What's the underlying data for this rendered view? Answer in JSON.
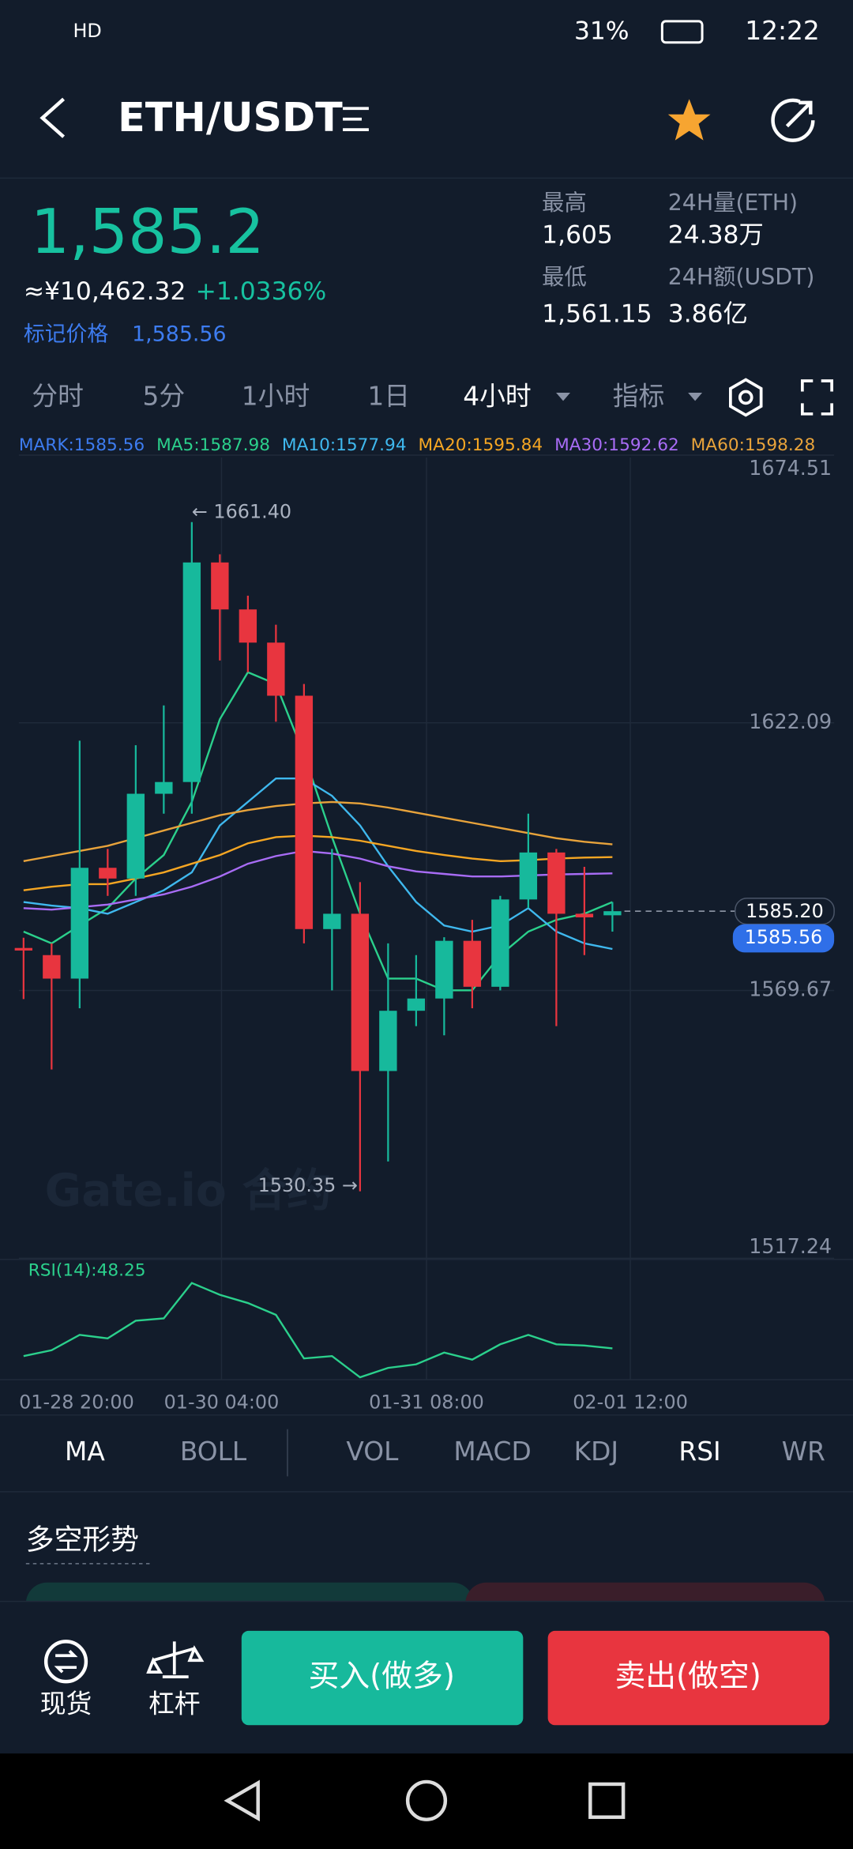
{
  "status_bar": {
    "battery": "31%",
    "time": "12:22"
  },
  "header": {
    "title": "ETH/USDT"
  },
  "ticker": {
    "price": "1,585.2",
    "cny": "≈¥10,462.32",
    "change": "+1.0336%",
    "mark_label": "标记价格",
    "mark_value": "1,585.56",
    "stats": [
      {
        "label": "最高",
        "value": "1,605"
      },
      {
        "label": "24H量(ETH)",
        "value": "24.38万"
      },
      {
        "label": "最低",
        "value": "1,561.15"
      },
      {
        "label": "24H额(USDT)",
        "value": "3.86亿"
      }
    ]
  },
  "intervals": [
    "分时",
    "5分",
    "1小时",
    "1日",
    "4小时",
    "指标"
  ],
  "chart_data": {
    "type": "candlestick",
    "legend": [
      {
        "text": "MARK:1585.56",
        "color": "#3d7cf0"
      },
      {
        "text": "MA5:1587.98",
        "color": "#2bd08c"
      },
      {
        "text": "MA10:1577.94",
        "color": "#3fb8ee"
      },
      {
        "text": "MA20:1595.84",
        "color": "#f5a623"
      },
      {
        "text": "MA30:1592.62",
        "color": "#a86cf5"
      },
      {
        "text": "MA60:1598.28",
        "color": "#e8a33b"
      }
    ],
    "ylim": [
      1517.24,
      1674.51
    ],
    "yticks": [
      1674.51,
      1622.09,
      1569.67,
      1517.24
    ],
    "up_color": "#17b99c",
    "down_color": "#e8353f",
    "candles": [
      {
        "open": 1578,
        "high": 1580,
        "low": 1568,
        "close": 1577.5
      },
      {
        "open": 1576.6,
        "high": 1578.9,
        "low": 1554.2,
        "close": 1572.0
      },
      {
        "open": 1572.0,
        "high": 1618.6,
        "low": 1566.2,
        "close": 1593.7
      },
      {
        "open": 1593.7,
        "high": 1597.4,
        "low": 1588.2,
        "close": 1591.6
      },
      {
        "open": 1591.6,
        "high": 1617.7,
        "low": 1588.2,
        "close": 1608.2
      },
      {
        "open": 1608.2,
        "high": 1625.5,
        "low": 1604.3,
        "close": 1610.5
      },
      {
        "open": 1610.5,
        "high": 1661.4,
        "low": 1604.3,
        "close": 1653.5
      },
      {
        "open": 1653.5,
        "high": 1655.1,
        "low": 1634.3,
        "close": 1644.3
      },
      {
        "open": 1644.3,
        "high": 1647.0,
        "low": 1632.0,
        "close": 1637.8
      },
      {
        "open": 1637.8,
        "high": 1641.3,
        "low": 1622.3,
        "close": 1627.4
      },
      {
        "open": 1627.4,
        "high": 1629.7,
        "low": 1578.9,
        "close": 1581.7
      },
      {
        "open": 1581.7,
        "high": 1597.4,
        "low": 1569.7,
        "close": 1584.7
      },
      {
        "open": 1584.7,
        "high": 1590.9,
        "low": 1530.35,
        "close": 1553.9
      },
      {
        "open": 1553.9,
        "high": 1578.9,
        "low": 1536.2,
        "close": 1565.7
      },
      {
        "open": 1565.7,
        "high": 1576.6,
        "low": 1562.7,
        "close": 1568.1
      },
      {
        "open": 1568.1,
        "high": 1580.1,
        "low": 1560.9,
        "close": 1579.4
      },
      {
        "open": 1579.4,
        "high": 1583.5,
        "low": 1566.2,
        "close": 1570.4
      },
      {
        "open": 1570.4,
        "high": 1588.2,
        "low": 1569.7,
        "close": 1587.5
      },
      {
        "open": 1587.5,
        "high": 1604.3,
        "low": 1585.8,
        "close": 1596.7
      },
      {
        "open": 1596.7,
        "high": 1597.4,
        "low": 1562.7,
        "close": 1584.7
      },
      {
        "open": 1584.7,
        "high": 1593.9,
        "low": 1576.6,
        "close": 1584.0
      },
      {
        "open": 1584.4,
        "high": 1587.0,
        "low": 1581.2,
        "close": 1585.2
      }
    ],
    "series": [
      {
        "name": "MA5",
        "color": "#2bd08c",
        "values": [
          1581.2,
          1578.9,
          1582.4,
          1585.8,
          1591.6,
          1596.2,
          1606.6,
          1622.8,
          1632.0,
          1629.7,
          1615.9,
          1599.7,
          1584.7,
          1572.0,
          1572.0,
          1569.7,
          1569.7,
          1576.6,
          1581.2,
          1583.5,
          1584.7,
          1587.0
        ]
      },
      {
        "name": "MA10",
        "color": "#3fb8ee",
        "values": [
          1587.0,
          1586.3,
          1585.8,
          1584.7,
          1587.0,
          1589.3,
          1592.8,
          1602.0,
          1606.6,
          1611.2,
          1611.2,
          1607.8,
          1602.0,
          1594.0,
          1587.0,
          1582.4,
          1581.2,
          1582.4,
          1585.8,
          1581.2,
          1578.9,
          1577.8
        ]
      },
      {
        "name": "MA20",
        "color": "#f5a623",
        "values": [
          1589.3,
          1590.0,
          1590.5,
          1590.5,
          1591.6,
          1592.8,
          1594.5,
          1596.2,
          1598.5,
          1599.7,
          1600.0,
          1599.7,
          1599.0,
          1598.0,
          1597.0,
          1596.2,
          1595.5,
          1595.0,
          1595.2,
          1595.5,
          1595.7,
          1595.8
        ]
      },
      {
        "name": "MA30",
        "color": "#a86cf5",
        "values": [
          1585.8,
          1585.5,
          1586.0,
          1586.5,
          1587.5,
          1588.5,
          1590.0,
          1592.0,
          1594.5,
          1596.0,
          1597.0,
          1596.5,
          1595.5,
          1594.0,
          1593.0,
          1592.5,
          1592.0,
          1592.0,
          1592.2,
          1592.4,
          1592.5,
          1592.6
        ]
      },
      {
        "name": "MA60",
        "color": "#e8a33b",
        "values": [
          1595.0,
          1596.0,
          1597.0,
          1598.0,
          1599.5,
          1601.0,
          1602.5,
          1604.0,
          1605.0,
          1605.8,
          1606.3,
          1606.6,
          1606.3,
          1605.5,
          1604.5,
          1603.5,
          1602.5,
          1601.5,
          1600.5,
          1599.5,
          1598.8,
          1598.3
        ]
      }
    ],
    "high_annotation": "← 1661.40",
    "low_annotation": "1530.35 →",
    "last_price": {
      "value": 1585.2,
      "label": "1585.20"
    },
    "mark_price": "1585.56",
    "watermark": "Gate.io 合约",
    "x_labels": [
      "01-28 20:00",
      "01-30 04:00",
      "01-31 08:00",
      "02-01 12:00"
    ],
    "rsi": {
      "label": "RSI(14):48.25",
      "color": "#2bd08c",
      "ylim": [
        35,
        80
      ],
      "values": [
        45,
        47.5,
        54,
        52.5,
        60,
        61,
        76,
        71,
        67.5,
        62.5,
        44,
        45,
        36,
        40,
        41.5,
        46.5,
        43.5,
        50,
        54,
        50,
        49.5,
        48.25
      ]
    }
  },
  "indicator_tabs": [
    "MA",
    "BOLL",
    "VOL",
    "MACD",
    "KDJ",
    "RSI",
    "WR"
  ],
  "section_title": "多空形势",
  "bottom_bar": {
    "spot": "现货",
    "leverage": "杠杆",
    "buy": "买入(做多)",
    "sell": "卖出(做空)"
  }
}
